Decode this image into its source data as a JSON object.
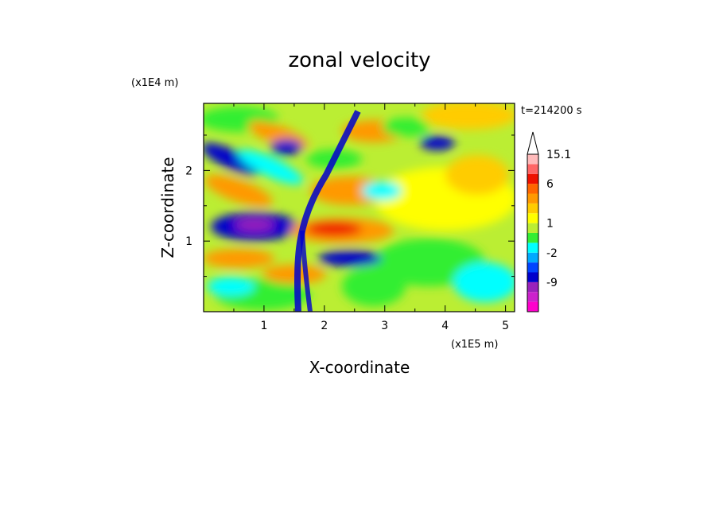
{
  "chart_data": {
    "type": "heatmap",
    "title": "zonal velocity",
    "xlabel": "X-coordinate",
    "ylabel": "Z-coordinate",
    "x_unit": "(x1E5 m)",
    "y_unit": "(x1E4 m)",
    "time_label": "t=214200 s",
    "xlim": [
      0,
      5.15
    ],
    "ylim": [
      0,
      2.95
    ],
    "x_ticks": [
      "1",
      "2",
      "3",
      "4",
      "5"
    ],
    "y_ticks": [
      "1",
      "2"
    ],
    "colorbar": {
      "labels": [
        "15.1",
        "6",
        "1",
        "-2",
        "-9"
      ],
      "levels": [
        {
          "color": "#ff00cc"
        },
        {
          "color": "#cc22cc"
        },
        {
          "color": "#9922bb"
        },
        {
          "color": "#0000cc"
        },
        {
          "color": "#0044ff"
        },
        {
          "color": "#00aaff"
        },
        {
          "color": "#00ffff"
        },
        {
          "color": "#33ee33"
        },
        {
          "color": "#bbee33"
        },
        {
          "color": "#ffff00"
        },
        {
          "color": "#ffcc00"
        },
        {
          "color": "#ff9900"
        },
        {
          "color": "#ff6600"
        },
        {
          "color": "#ee1100"
        },
        {
          "color": "#ff6666"
        },
        {
          "color": "#ffbbbb"
        }
      ],
      "extend_arrow_color": "#ffffff"
    }
  }
}
